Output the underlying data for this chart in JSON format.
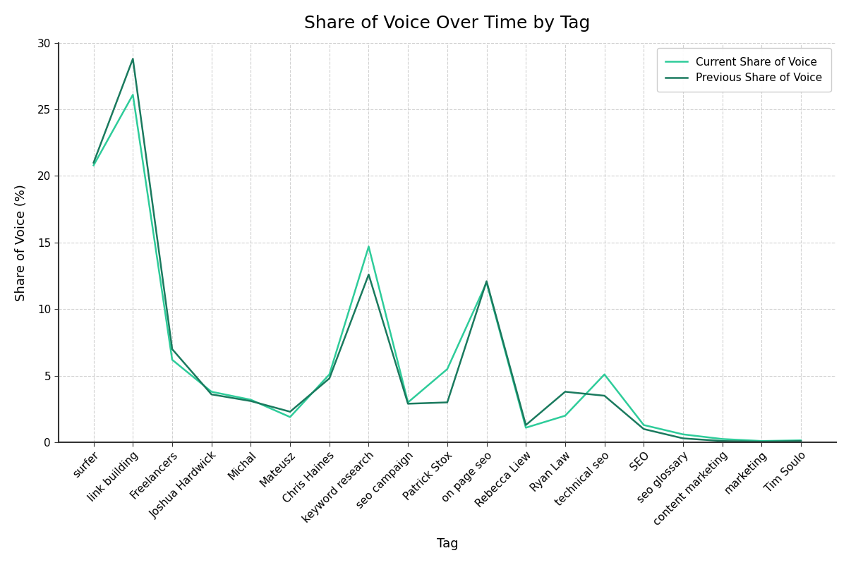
{
  "title": "Share of Voice Over Time by Tag",
  "xlabel": "Tag",
  "ylabel": "Share of Voice (%)",
  "tags": [
    "surfer",
    "link building",
    "Freelancers",
    "Joshua Hardwick",
    "Michal",
    "Mateusz",
    "Chris Haines",
    "keyword research",
    "seo campaign",
    "Patrick Stox",
    "on page seo",
    "Rebecca Liew",
    "Ryan Law",
    "technical seo",
    "SEO",
    "seo glossary",
    "content marketing",
    "marketing",
    "Tim Soulo"
  ],
  "current_sov": [
    20.8,
    26.1,
    6.2,
    3.8,
    3.2,
    1.9,
    5.1,
    14.7,
    3.0,
    5.5,
    12.0,
    1.1,
    2.0,
    5.1,
    1.3,
    0.6,
    0.25,
    0.1,
    0.15
  ],
  "previous_sov": [
    21.0,
    28.8,
    7.0,
    3.6,
    3.1,
    2.3,
    4.8,
    12.6,
    2.9,
    3.0,
    12.1,
    1.3,
    3.8,
    3.5,
    1.0,
    0.3,
    0.1,
    0.05,
    0.1
  ],
  "current_color": "#2ecc9a",
  "previous_color": "#1a7a5e",
  "background_color": "#ffffff",
  "grid_color": "#cccccc",
  "ylim": [
    0,
    30
  ],
  "yticks": [
    0,
    5,
    10,
    15,
    20,
    25,
    30
  ],
  "current_label": "Current Share of Voice",
  "previous_label": "Previous Share of Voice",
  "title_fontsize": 18,
  "axis_label_fontsize": 13,
  "tick_fontsize": 11,
  "legend_fontsize": 11
}
